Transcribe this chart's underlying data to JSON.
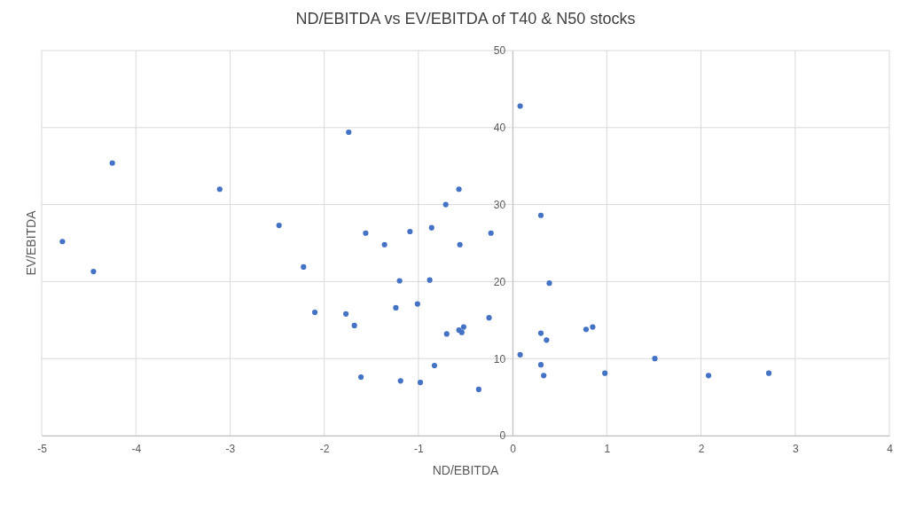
{
  "chart_data": {
    "type": "scatter",
    "title": "ND/EBITDA vs EV/EBITDA of T40 & N50 stocks",
    "xlabel": "ND/EBITDA",
    "ylabel": "EV/EBITDA",
    "xlim": [
      -5,
      4
    ],
    "xticks": [
      -5,
      -4,
      -3,
      -2,
      -1,
      0,
      1,
      2,
      3,
      4
    ],
    "ylim": [
      0,
      50
    ],
    "yticks": [
      0,
      10,
      20,
      30,
      40,
      50
    ],
    "grid": true,
    "marker": "circle",
    "series": [
      {
        "color": "#4472c4",
        "x": [
          -4.78,
          -4.45,
          -4.25,
          -3.11,
          -2.48,
          -2.22,
          -2.1,
          -1.74,
          -1.56,
          -1.36,
          -1.09,
          -0.86,
          -0.71,
          -0.57,
          -0.56,
          -1.2,
          -0.88,
          -1.24,
          -1.01,
          -1.77,
          -1.68,
          -0.7,
          -0.57,
          -0.54,
          -0.52,
          -0.25,
          -0.23,
          -0.83,
          -1.61,
          -1.19,
          -0.98,
          -0.36,
          0.08,
          0.3,
          0.39,
          0.3,
          0.36,
          0.08,
          0.3,
          0.33,
          0.78,
          0.85,
          0.98,
          1.51,
          2.08,
          2.72
        ],
        "values": [
          25.2,
          21.3,
          35.4,
          32.0,
          27.3,
          21.9,
          16.0,
          39.4,
          26.3,
          24.8,
          26.5,
          27.0,
          30.0,
          32.0,
          24.8,
          20.1,
          20.2,
          16.6,
          17.1,
          15.8,
          14.3,
          13.2,
          13.7,
          13.4,
          14.1,
          15.3,
          26.3,
          9.1,
          7.6,
          7.1,
          6.9,
          6.0,
          42.8,
          28.6,
          19.8,
          13.3,
          12.4,
          10.5,
          9.2,
          7.8,
          13.8,
          14.1,
          8.1,
          10.0,
          7.8,
          8.1
        ]
      }
    ]
  }
}
